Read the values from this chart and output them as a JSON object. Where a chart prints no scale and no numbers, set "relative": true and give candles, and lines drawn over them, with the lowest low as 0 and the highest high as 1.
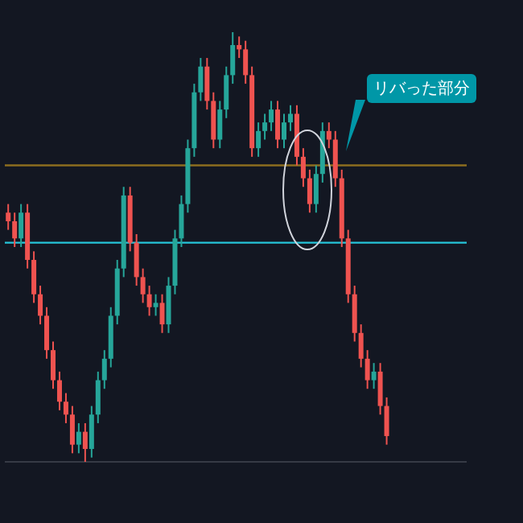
{
  "chart_data": {
    "type": "candlestick",
    "relative": true,
    "categories": [
      null,
      null,
      null,
      null,
      null,
      null,
      null,
      null,
      null,
      null,
      null,
      null,
      null,
      null,
      null,
      null,
      null,
      null,
      null,
      null,
      null,
      null,
      null,
      null,
      null,
      null,
      null,
      null,
      null,
      null,
      null,
      null,
      null,
      null,
      null,
      null,
      null,
      null,
      null,
      null,
      null,
      null,
      null,
      null,
      null,
      null,
      null,
      null,
      null,
      null,
      null,
      null,
      null,
      null,
      null,
      null,
      null,
      null,
      null,
      null,
      null,
      null,
      null,
      null,
      null,
      null,
      null,
      null,
      null,
      null,
      null,
      null
    ],
    "ohlc": [
      [
        0.58,
        0.6,
        0.54,
        0.56
      ],
      [
        0.56,
        0.58,
        0.5,
        0.52
      ],
      [
        0.52,
        0.6,
        0.5,
        0.58
      ],
      [
        0.58,
        0.6,
        0.45,
        0.47
      ],
      [
        0.47,
        0.49,
        0.37,
        0.39
      ],
      [
        0.39,
        0.41,
        0.32,
        0.34
      ],
      [
        0.34,
        0.36,
        0.24,
        0.26
      ],
      [
        0.26,
        0.28,
        0.17,
        0.19
      ],
      [
        0.19,
        0.21,
        0.12,
        0.14
      ],
      [
        0.14,
        0.16,
        0.09,
        0.11
      ],
      [
        0.11,
        0.13,
        0.02,
        0.04
      ],
      [
        0.04,
        0.09,
        0.02,
        0.07
      ],
      [
        0.07,
        0.09,
        0.0,
        0.03
      ],
      [
        0.03,
        0.13,
        0.01,
        0.11
      ],
      [
        0.11,
        0.21,
        0.09,
        0.19
      ],
      [
        0.19,
        0.26,
        0.17,
        0.24
      ],
      [
        0.24,
        0.36,
        0.22,
        0.34
      ],
      [
        0.34,
        0.47,
        0.32,
        0.45
      ],
      [
        0.45,
        0.64,
        0.43,
        0.62
      ],
      [
        0.62,
        0.64,
        0.49,
        0.51
      ],
      [
        0.51,
        0.53,
        0.41,
        0.43
      ],
      [
        0.43,
        0.45,
        0.37,
        0.39
      ],
      [
        0.39,
        0.41,
        0.34,
        0.36
      ],
      [
        0.36,
        0.39,
        0.34,
        0.37
      ],
      [
        0.37,
        0.39,
        0.3,
        0.32
      ],
      [
        0.32,
        0.43,
        0.3,
        0.41
      ],
      [
        0.41,
        0.54,
        0.39,
        0.52
      ],
      [
        0.52,
        0.62,
        0.5,
        0.6
      ],
      [
        0.6,
        0.75,
        0.58,
        0.73
      ],
      [
        0.73,
        0.88,
        0.71,
        0.86
      ],
      [
        0.86,
        0.94,
        0.84,
        0.92
      ],
      [
        0.92,
        0.94,
        0.82,
        0.84
      ],
      [
        0.84,
        0.86,
        0.73,
        0.75
      ],
      [
        0.75,
        0.84,
        0.73,
        0.82
      ],
      [
        0.82,
        0.92,
        0.8,
        0.9
      ],
      [
        0.9,
        1.0,
        0.88,
        0.97
      ],
      [
        0.97,
        0.99,
        0.94,
        0.96
      ],
      [
        0.96,
        0.98,
        0.88,
        0.9
      ],
      [
        0.9,
        0.92,
        0.71,
        0.73
      ],
      [
        0.73,
        0.79,
        0.71,
        0.77
      ],
      [
        0.77,
        0.81,
        0.75,
        0.79
      ],
      [
        0.79,
        0.84,
        0.77,
        0.82
      ],
      [
        0.82,
        0.84,
        0.73,
        0.75
      ],
      [
        0.75,
        0.81,
        0.73,
        0.79
      ],
      [
        0.79,
        0.83,
        0.77,
        0.81
      ],
      [
        0.81,
        0.83,
        0.69,
        0.71
      ],
      [
        0.71,
        0.73,
        0.64,
        0.66
      ],
      [
        0.66,
        0.68,
        0.58,
        0.6
      ],
      [
        0.6,
        0.69,
        0.58,
        0.67
      ],
      [
        0.67,
        0.79,
        0.65,
        0.77
      ],
      [
        0.77,
        0.79,
        0.73,
        0.75
      ],
      [
        0.75,
        0.77,
        0.64,
        0.66
      ],
      [
        0.66,
        0.68,
        0.5,
        0.52
      ],
      [
        0.52,
        0.54,
        0.37,
        0.39
      ],
      [
        0.39,
        0.41,
        0.28,
        0.3
      ],
      [
        0.3,
        0.32,
        0.22,
        0.24
      ],
      [
        0.24,
        0.26,
        0.17,
        0.19
      ],
      [
        0.19,
        0.23,
        0.17,
        0.21
      ],
      [
        0.21,
        0.23,
        0.11,
        0.13
      ],
      [
        0.13,
        0.15,
        0.04,
        0.06
      ],
      null,
      null,
      null,
      null,
      null,
      null,
      null,
      null,
      null,
      null,
      null,
      null
    ],
    "ref_lines": [
      {
        "axis": "y",
        "value": 0.51,
        "color": "#26c6da"
      },
      {
        "axis": "y",
        "value": 0.69,
        "color": "#8d6e1f"
      }
    ],
    "annotations": [
      "リバった部分"
    ]
  }
}
